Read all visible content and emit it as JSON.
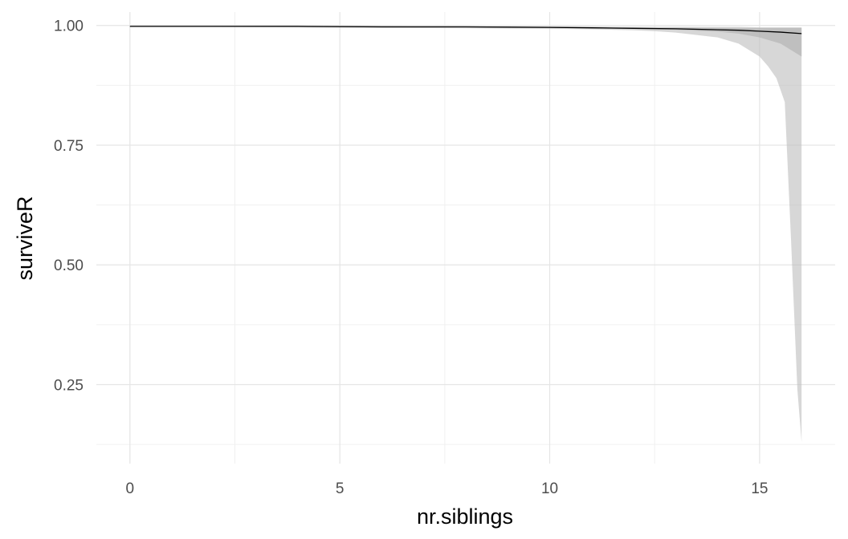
{
  "chart_data": {
    "type": "line",
    "title": "",
    "xlabel": "nr.siblings",
    "ylabel": "surviveR",
    "xlim": [
      -0.8,
      16.8
    ],
    "ylim": [
      0.085,
      1.028
    ],
    "x_ticks": [
      0,
      5,
      10,
      15
    ],
    "x_tick_labels": [
      "0",
      "5",
      "10",
      "15"
    ],
    "y_ticks": [
      0.25,
      0.5,
      0.75,
      1.0
    ],
    "y_tick_labels": [
      "0.25",
      "0.50",
      "0.75",
      "1.00"
    ],
    "grid": true,
    "legend": "none",
    "series": [
      {
        "x": [
          0,
          2,
          4,
          6,
          8,
          10,
          11,
          12,
          13,
          14,
          14.5,
          15,
          15.5,
          16
        ],
        "y": [
          0.998,
          0.998,
          0.998,
          0.997,
          0.997,
          0.996,
          0.995,
          0.994,
          0.993,
          0.991,
          0.99,
          0.988,
          0.986,
          0.983
        ],
        "color": "#000000"
      }
    ],
    "bands": [
      {
        "x": [
          0,
          2,
          4,
          6,
          8,
          10,
          11,
          12,
          13,
          14,
          14.5,
          15,
          15.5,
          16
        ],
        "lower": [
          0.997,
          0.997,
          0.997,
          0.996,
          0.996,
          0.995,
          0.994,
          0.993,
          0.991,
          0.987,
          0.983,
          0.975,
          0.962,
          0.935
        ],
        "upper": [
          0.999,
          0.999,
          0.999,
          0.998,
          0.998,
          0.997,
          0.996,
          0.995,
          0.995,
          0.995,
          0.995,
          0.995,
          0.995,
          0.995
        ],
        "color": "#a8a8a8",
        "opacity": 0.7
      },
      {
        "x": [
          0,
          2,
          4,
          6,
          8,
          10,
          11,
          12,
          12.5,
          13,
          13.5,
          14,
          14.5,
          15,
          15.2,
          15.4,
          15.6,
          15.75,
          15.9,
          16
        ],
        "lower": [
          0.997,
          0.997,
          0.996,
          0.995,
          0.994,
          0.993,
          0.992,
          0.99,
          0.988,
          0.985,
          0.98,
          0.975,
          0.962,
          0.935,
          0.915,
          0.89,
          0.84,
          0.55,
          0.24,
          0.13
        ],
        "upper": [
          0.999,
          0.999,
          0.999,
          0.999,
          0.998,
          0.998,
          0.998,
          0.997,
          0.997,
          0.997,
          0.997,
          0.997,
          0.997,
          0.996,
          0.996,
          0.996,
          0.996,
          0.996,
          0.996,
          0.996
        ],
        "color": "#bdbdbd",
        "opacity": 0.6
      }
    ]
  }
}
